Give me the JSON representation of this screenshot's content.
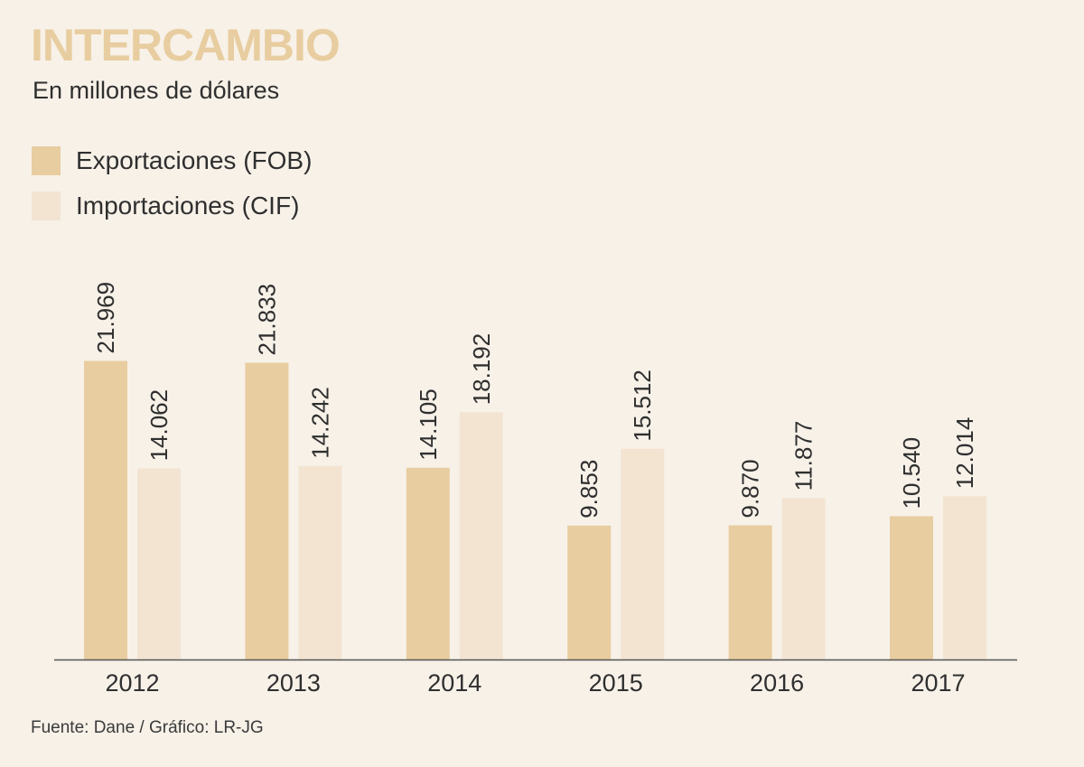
{
  "header": {
    "title": "INTERCAMBIO",
    "subtitle": "En millones de dólares"
  },
  "colors": {
    "background": "#f7f1e8",
    "exportaciones": "#e8cda0",
    "importaciones": "#f3e4d2",
    "axis": "#555555",
    "text": "#2f2f2f"
  },
  "chart_data": {
    "type": "bar",
    "title": "INTERCAMBIO",
    "subtitle": "En millones de dólares",
    "xlabel": "",
    "ylabel": "",
    "categories": [
      "2012",
      "2013",
      "2014",
      "2015",
      "2016",
      "2017"
    ],
    "series": [
      {
        "name": "Exportaciones (FOB)",
        "color": "#e8cda0",
        "values": [
          21969,
          21833,
          14105,
          9853,
          9870,
          10540
        ],
        "labels": [
          "21.969",
          "21.833",
          "14.105",
          "9.853",
          "9.870",
          "10.540"
        ]
      },
      {
        "name": "Importaciones (CIF)",
        "color": "#f3e4d2",
        "values": [
          14062,
          14242,
          18192,
          15512,
          11877,
          12014
        ],
        "labels": [
          "14.062",
          "14.242",
          "18.192",
          "15.512",
          "11.877",
          "12.014"
        ]
      }
    ],
    "ylim": [
      0,
      30000
    ],
    "grid": false,
    "legend_position": "top-left",
    "data_labels": "vertical, above bars"
  },
  "footer": {
    "source": "Fuente: Dane / Gráfico: LR-JG"
  }
}
